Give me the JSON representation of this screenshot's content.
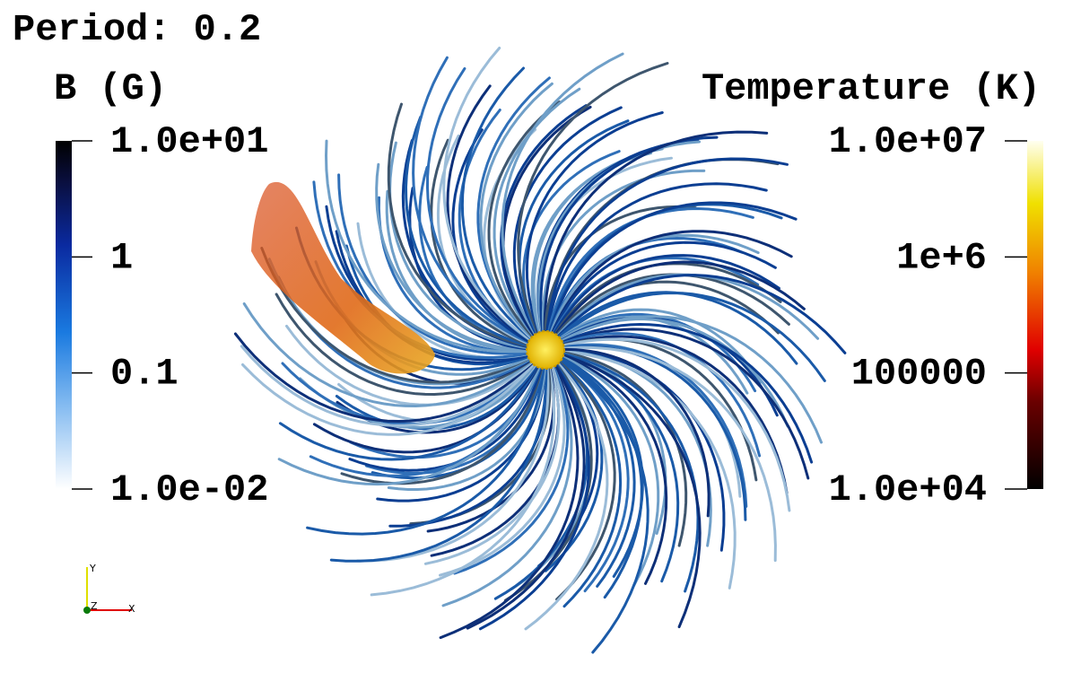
{
  "header": {
    "title": "Period: 0.2"
  },
  "colorbars": [
    {
      "title": "B (G)",
      "log_scale": true,
      "ticks": [
        {
          "value": 10,
          "label": "1.0e+01"
        },
        {
          "value": 1,
          "label": "1"
        },
        {
          "value": 0.1,
          "label": "0.1"
        },
        {
          "value": 0.01,
          "label": "1.0e-02"
        }
      ]
    },
    {
      "title": "Temperature (K)",
      "log_scale": true,
      "ticks": [
        {
          "value": 10000000,
          "label": "1.0e+07"
        },
        {
          "value": 1000000,
          "label": "1e+6"
        },
        {
          "value": 100000,
          "label": "100000"
        },
        {
          "value": 10000,
          "label": "1.0e+04"
        }
      ]
    }
  ],
  "axes_triad": {
    "x": "X",
    "y": "Y",
    "z": "Z"
  }
}
